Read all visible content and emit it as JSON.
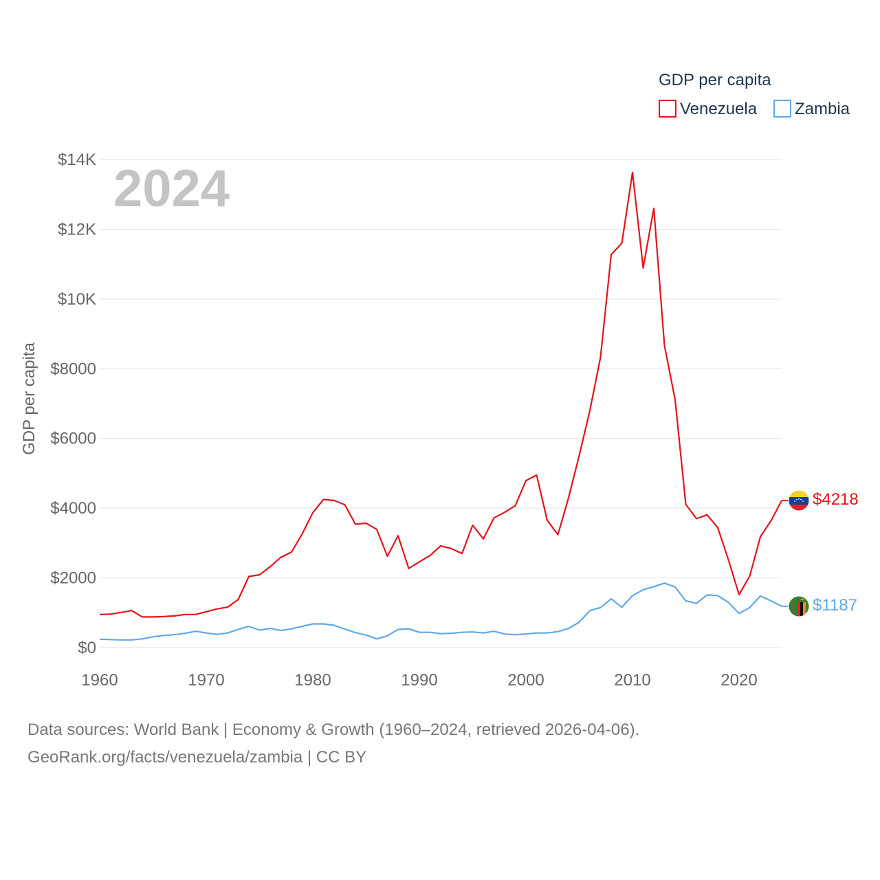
{
  "chart_data": {
    "type": "line",
    "title": "GDP per capita",
    "current_year": "2024",
    "ylabel": "GDP per capita",
    "xlabel": "",
    "xlim": [
      1960,
      2024
    ],
    "ylim": [
      0,
      14000
    ],
    "x_ticks": [
      1960,
      1970,
      1980,
      1990,
      2000,
      2010,
      2020
    ],
    "x_tick_labels": [
      "1960",
      "1970",
      "1980",
      "1990",
      "2000",
      "2010",
      "2020"
    ],
    "y_ticks": [
      0,
      2000,
      4000,
      6000,
      8000,
      10000,
      12000,
      14000
    ],
    "y_tick_labels": [
      "$0",
      "$2000",
      "$4000",
      "$6000",
      "$8000",
      "$10K",
      "$12K",
      "$14K"
    ],
    "grid": true,
    "legend_position": "top-right",
    "years": [
      1960,
      1961,
      1962,
      1963,
      1964,
      1965,
      1966,
      1967,
      1968,
      1969,
      1970,
      1971,
      1972,
      1973,
      1974,
      1975,
      1976,
      1977,
      1978,
      1979,
      1980,
      1981,
      1982,
      1983,
      1984,
      1985,
      1986,
      1987,
      1988,
      1989,
      1990,
      1991,
      1992,
      1993,
      1994,
      1995,
      1996,
      1997,
      1998,
      1999,
      2000,
      2001,
      2002,
      2003,
      2004,
      2005,
      2006,
      2007,
      2008,
      2009,
      2010,
      2011,
      2012,
      2013,
      2014,
      2015,
      2016,
      2017,
      2018,
      2019,
      2020,
      2021,
      2022,
      2023,
      2024
    ],
    "series": [
      {
        "name": "Venezuela",
        "color": "#e3141b",
        "end_label": "$4218",
        "flag": "venezuela-flag",
        "values": [
          950,
          960,
          1010,
          1060,
          880,
          880,
          890,
          910,
          950,
          950,
          1030,
          1110,
          1160,
          1380,
          2040,
          2090,
          2320,
          2590,
          2740,
          3260,
          3870,
          4250,
          4220,
          4100,
          3540,
          3570,
          3390,
          2620,
          3210,
          2270,
          2460,
          2640,
          2920,
          2840,
          2700,
          3510,
          3120,
          3720,
          3880,
          4070,
          4790,
          4950,
          3650,
          3240,
          4300,
          5510,
          6800,
          8330,
          11270,
          11600,
          13630,
          10890,
          12600,
          8660,
          7110,
          4110,
          3700,
          3810,
          3440,
          2520,
          1520,
          2050,
          3180,
          3640,
          4218
        ]
      },
      {
        "name": "Zambia",
        "color": "#5fa8e8",
        "end_label": "$1187",
        "flag": "zambia-flag",
        "values": [
          240,
          230,
          220,
          220,
          250,
          310,
          350,
          370,
          410,
          470,
          420,
          380,
          420,
          520,
          610,
          500,
          550,
          490,
          540,
          610,
          680,
          680,
          640,
          530,
          430,
          360,
          250,
          340,
          520,
          540,
          440,
          440,
          400,
          410,
          440,
          450,
          420,
          470,
          390,
          370,
          390,
          420,
          420,
          460,
          550,
          730,
          1060,
          1150,
          1400,
          1160,
          1490,
          1660,
          1750,
          1850,
          1740,
          1340,
          1270,
          1510,
          1490,
          1300,
          980,
          1150,
          1480,
          1340,
          1187
        ]
      }
    ]
  },
  "footer": {
    "line1": "Data sources: World Bank | Economy & Growth (1960–2024, retrieved 2026-04-06).",
    "line2": "GeoRank.org/facts/venezuela/zambia | CC BY"
  }
}
